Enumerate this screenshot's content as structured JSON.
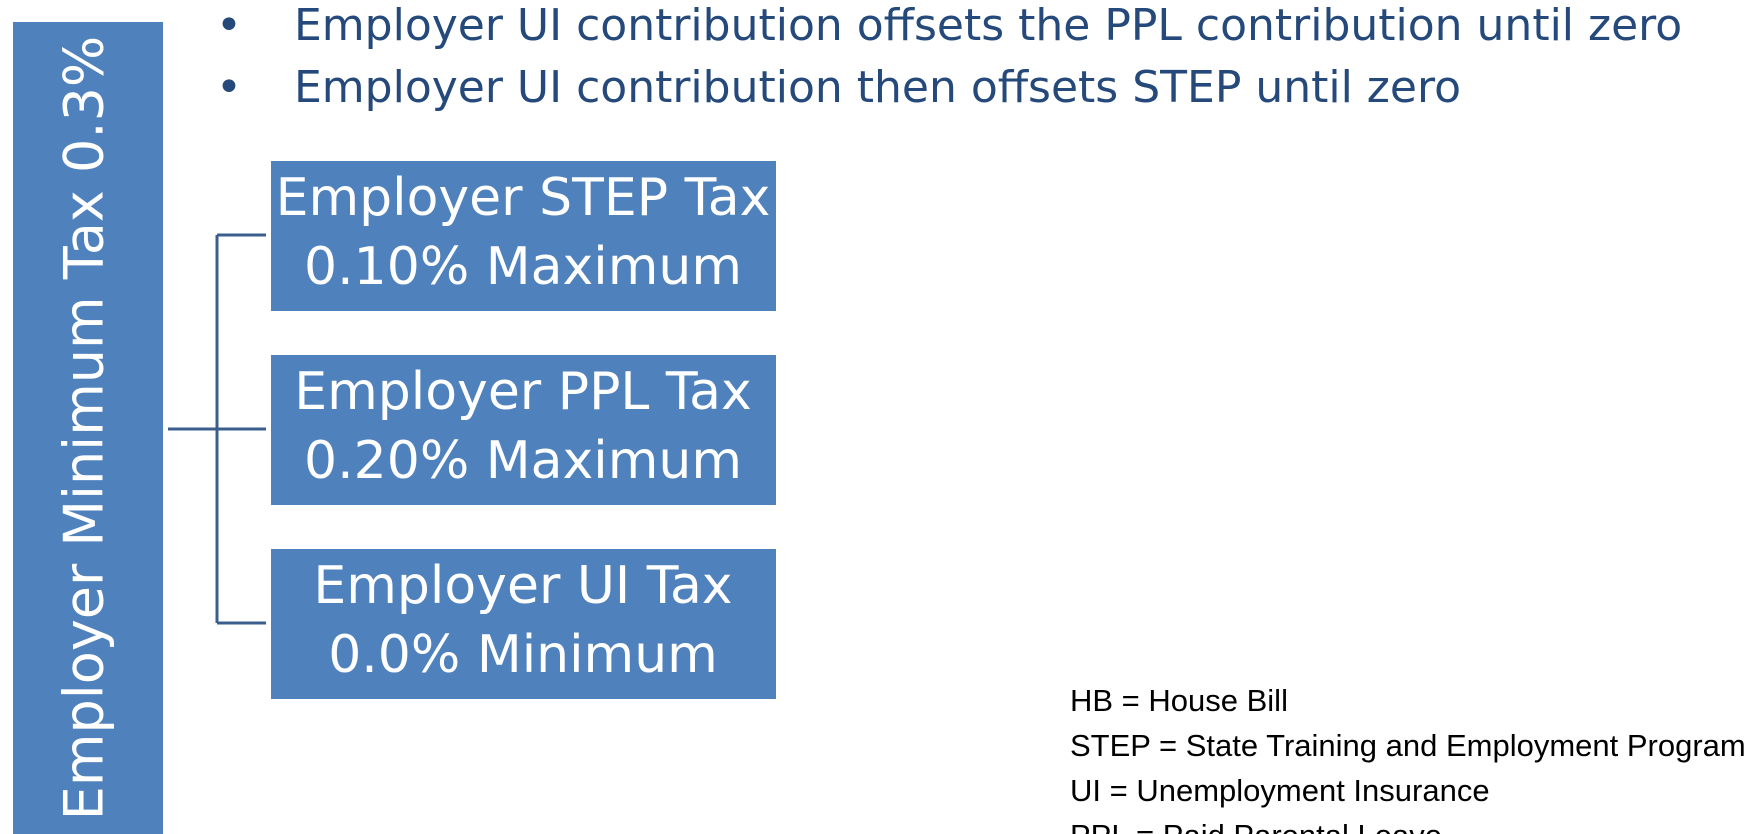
{
  "sidebar": {
    "title": "Employer Minimum Tax 0.3%"
  },
  "bullets": [
    "Employer UI contribution offsets the PPL contribution until zero",
    "Employer UI contribution then offsets STEP until zero"
  ],
  "boxes": [
    {
      "line1": "Employer STEP Tax",
      "line2": "0.10% Maximum"
    },
    {
      "line1": "Employer PPL Tax",
      "line2": "0.20% Maximum"
    },
    {
      "line1": "Employer UI Tax",
      "line2": "0.0% Minimum"
    }
  ],
  "legend": [
    "HB = House Bill",
    "STEP = State Training and Employment Program",
    "UI = Unemployment Insurance",
    "PPL = Paid Parental Leave"
  ]
}
